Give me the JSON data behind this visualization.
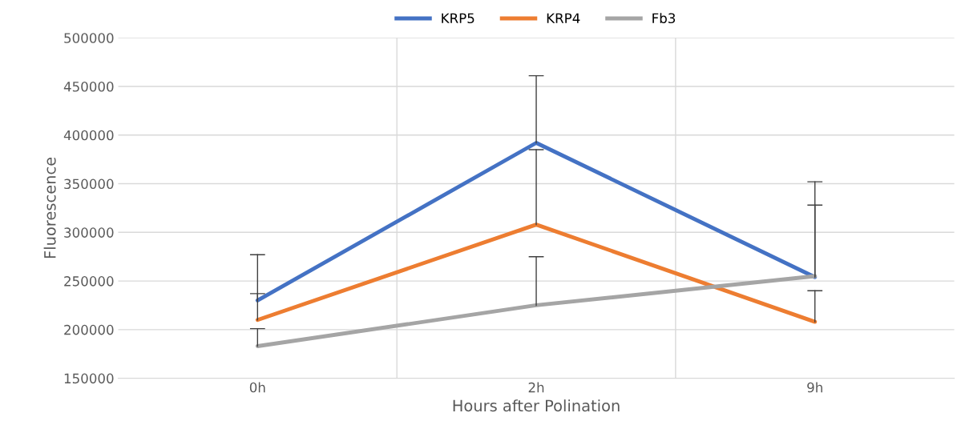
{
  "chart_data": {
    "type": "line",
    "xlabel": "Hours after Polination",
    "ylabel": "Fluorescence",
    "categories": [
      "0h",
      "2h",
      "9h"
    ],
    "series": [
      {
        "name": "KRP5",
        "color": "#4472c4",
        "values": [
          230000,
          392000,
          254000
        ],
        "errors": [
          [
            230000,
            277000
          ],
          [
            392000,
            461000
          ],
          [
            254000,
            352000
          ]
        ]
      },
      {
        "name": "KRP4",
        "color": "#ed7d31",
        "values": [
          210000,
          308000,
          208000
        ],
        "errors": [
          [
            210000,
            237000
          ],
          [
            308000,
            385000
          ],
          [
            208000,
            240000
          ]
        ]
      },
      {
        "name": "Fb3",
        "color": "#a5a5a5",
        "values": [
          183000,
          225000,
          255000
        ],
        "errors": [
          [
            183000,
            201000
          ],
          [
            225000,
            275000
          ],
          [
            255000,
            328000
          ]
        ]
      }
    ],
    "ylim": [
      150000,
      500000
    ],
    "yticks": [
      150000,
      200000,
      250000,
      300000,
      350000,
      400000,
      450000,
      500000
    ],
    "grid": true,
    "legend": "top",
    "marker": "none",
    "line_style": "solid"
  }
}
